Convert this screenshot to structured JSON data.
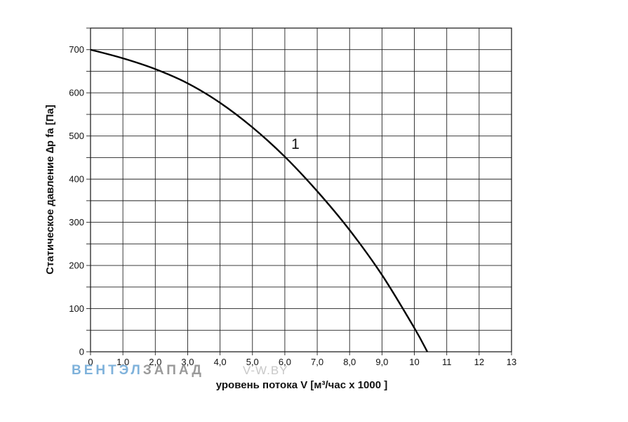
{
  "chart_data": {
    "type": "line",
    "xlabel": "уровень потока  V [м³/час х 1000 ]",
    "ylabel": "Статическое давление  ∆p fa [Па]",
    "xlim": [
      0,
      13
    ],
    "ylim": [
      0,
      750
    ],
    "x_ticks": [
      0,
      1,
      2,
      3,
      4,
      5,
      6,
      7,
      8,
      9,
      10,
      11,
      12,
      13
    ],
    "x_tick_labels": [
      "0",
      "1,0",
      "2,0",
      "3,0",
      "4,0",
      "5,0",
      "6,0",
      "7,0",
      "8,0",
      "9,0",
      "10",
      "11",
      "12",
      "13"
    ],
    "y_ticks": [
      0,
      100,
      200,
      300,
      400,
      500,
      600,
      700
    ],
    "y_tick_labels": [
      "0",
      "100",
      "200",
      "300",
      "400",
      "500",
      "600",
      "700"
    ],
    "grid": true,
    "series": [
      {
        "name": "1",
        "x": [
          0,
          1,
          2,
          3,
          4,
          5,
          6,
          7,
          8,
          9,
          10,
          10.4
        ],
        "y": [
          700,
          680,
          655,
          622,
          577,
          520,
          452,
          372,
          282,
          178,
          55,
          0
        ]
      }
    ]
  },
  "watermark": {
    "brand_part1": "ВЕНТЭЛ",
    "brand_part2": "ЗАПАД",
    "site": "V-W.BY",
    "color_part1": "#7fb2db",
    "color_part2": "#9a9a9a",
    "color_site": "#c8c8c8"
  }
}
